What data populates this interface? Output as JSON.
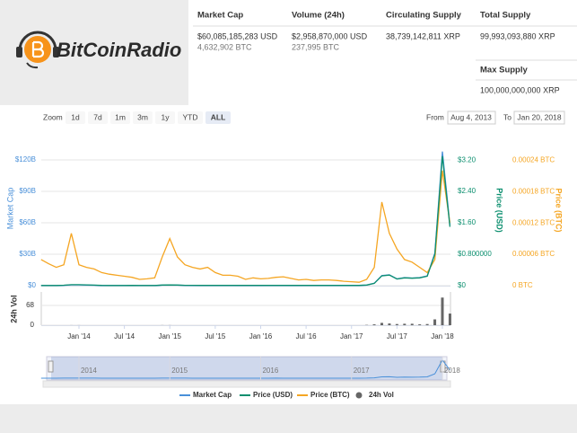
{
  "logo": {
    "text": "BitCoinRadio"
  },
  "stats": {
    "columns": [
      {
        "header": "Market Cap",
        "value": "$60,085,185,283 USD",
        "sub": "4,632,902 BTC"
      },
      {
        "header": "Volume (24h)",
        "value": "$2,958,870,000 USD",
        "sub": "237,995 BTC"
      },
      {
        "header": "Circulating Supply",
        "value": "38,739,142,811 XRP"
      },
      {
        "header": "Total Supply",
        "value": "99,993,093,880 XRP"
      }
    ],
    "max_supply": {
      "header": "Max Supply",
      "value": "100,000,000,000 XRP"
    }
  },
  "zoom": {
    "label": "Zoom",
    "buttons": [
      "1d",
      "7d",
      "1m",
      "3m",
      "1y",
      "YTD",
      "ALL"
    ],
    "active": "ALL"
  },
  "range": {
    "from_label": "From",
    "from": "Aug 4, 2013",
    "to_label": "To",
    "to": "Jan 20, 2018"
  },
  "chart_data": {
    "type": "line",
    "ylabel": "Market Cap",
    "y2label": "Price (USD)",
    "y3label": "Price (BTC)",
    "categories": [
      null,
      null,
      null,
      null,
      null,
      "Jan '14",
      null,
      null,
      null,
      null,
      null,
      "Jul '14",
      null,
      null,
      null,
      null,
      null,
      "Jan '15",
      null,
      null,
      null,
      null,
      null,
      "Jul '15",
      null,
      null,
      null,
      null,
      null,
      "Jan '16",
      null,
      null,
      null,
      null,
      null,
      "Jul '16",
      null,
      null,
      null,
      null,
      null,
      "Jan '17",
      null,
      null,
      null,
      null,
      null,
      "Jul '17",
      null,
      null,
      null,
      null,
      null,
      "Jan '18",
      null
    ],
    "series": [
      {
        "name": "Market Cap",
        "color": "#4a90d9",
        "axis": "y",
        "values": [
          0.16,
          0.16,
          0.16,
          0.38,
          0.8,
          0.8,
          0.64,
          0.45,
          0.19,
          0.16,
          0.16,
          0.16,
          0.19,
          0.16,
          0.16,
          0.16,
          0.51,
          0.58,
          0.48,
          0.32,
          0.29,
          0.26,
          0.26,
          0.26,
          0.26,
          0.22,
          0.19,
          0.19,
          0.19,
          0.21,
          0.25,
          0.32,
          0.25,
          0.21,
          0.21,
          0.22,
          0.22,
          0.25,
          0.25,
          0.25,
          0.24,
          0.23,
          0.25,
          0.55,
          2.3,
          9.6,
          10.4,
          6.5,
          7.7,
          7.3,
          7.7,
          9.3,
          31,
          128,
          58
        ]
      },
      {
        "name": "Price (USD)",
        "color": "#0c8f6f",
        "axis": "y2",
        "values": [
          0.005,
          0.005,
          0.005,
          0.012,
          0.025,
          0.025,
          0.02,
          0.014,
          0.006,
          0.005,
          0.005,
          0.005,
          0.006,
          0.005,
          0.005,
          0.005,
          0.016,
          0.018,
          0.015,
          0.01,
          0.009,
          0.008,
          0.008,
          0.008,
          0.008,
          0.007,
          0.006,
          0.006,
          0.006,
          0.006,
          0.007,
          0.009,
          0.007,
          0.006,
          0.006,
          0.006,
          0.006,
          0.007,
          0.007,
          0.007,
          0.0065,
          0.0064,
          0.007,
          0.015,
          0.06,
          0.25,
          0.27,
          0.17,
          0.2,
          0.19,
          0.2,
          0.24,
          0.8,
          3.3,
          1.5
        ]
      },
      {
        "name": "Price (BTC)",
        "color": "#f5a623",
        "axis": "y3",
        "values": [
          5e-05,
          4.2e-05,
          3.5e-05,
          4e-05,
          0.0001,
          4e-05,
          3.5e-05,
          3.2e-05,
          2.5e-05,
          2.2e-05,
          2e-05,
          1.8e-05,
          1.6e-05,
          1.2e-05,
          1.3e-05,
          1.5e-05,
          5.5e-05,
          9e-05,
          5.5e-05,
          4e-05,
          3.5e-05,
          3.2e-05,
          3.5e-05,
          2.5e-05,
          2e-05,
          2e-05,
          1.8e-05,
          1.2e-05,
          1.5e-05,
          1.3e-05,
          1.4e-05,
          1.6e-05,
          1.7e-05,
          1.4e-05,
          1.1e-05,
          1.2e-05,
          1e-05,
          1.1e-05,
          1.1e-05,
          1e-05,
          8.5e-06,
          7.5e-06,
          6.5e-06,
          1.2e-05,
          3.5e-05,
          0.00016,
          0.0001,
          7e-05,
          5e-05,
          4.5e-05,
          3.5e-05,
          2.5e-05,
          5e-05,
          0.00022,
          0.00012
        ]
      },
      {
        "name": "24h Vol",
        "color": "#666666",
        "axis": "vol",
        "type": "bar",
        "values": [
          0,
          0,
          0,
          0,
          0.2,
          0.2,
          0,
          0,
          0,
          0,
          0,
          0,
          0,
          0,
          0,
          0,
          0.3,
          0.3,
          0,
          0,
          0,
          0,
          0,
          0,
          0,
          0,
          0,
          0,
          0,
          0,
          0,
          0,
          0,
          0,
          0,
          0,
          0,
          0,
          0,
          0,
          0,
          0,
          0,
          1,
          3,
          8,
          6,
          4,
          5,
          5,
          3,
          4,
          20,
          95,
          40
        ]
      }
    ],
    "ylim": [
      0,
      139.7
    ],
    "yticks": [
      {
        "value": 0,
        "label": "$0"
      },
      {
        "value": 30,
        "label": "$30B"
      },
      {
        "value": 60,
        "label": "$60B"
      },
      {
        "value": 90,
        "label": "$90B"
      },
      {
        "value": 120,
        "label": "$120B"
      }
    ],
    "y2lim": [
      0,
      3.73
    ],
    "y2ticks": [
      {
        "value": 0,
        "label": "$0"
      },
      {
        "value": 0.8,
        "label": "$0.800000"
      },
      {
        "value": 1.6,
        "label": "$1.60"
      },
      {
        "value": 2.4,
        "label": "$2.40"
      },
      {
        "value": 3.2,
        "label": "$3.20"
      }
    ],
    "y3lim": [
      0,
      0.00028
    ],
    "y3ticks": [
      {
        "value": 0,
        "label": "0 BTC"
      },
      {
        "value": 6e-05,
        "label": "0.00006 BTC"
      },
      {
        "value": 0.00012,
        "label": "0.00012 BTC"
      },
      {
        "value": 0.00018,
        "label": "0.00018 BTC"
      },
      {
        "value": 0.00024,
        "label": "0.00024 BTC"
      }
    ],
    "vol_ylim": [
      0,
      105
    ],
    "vol_yticks": [
      0,
      68
    ],
    "grid": true,
    "navigator": {
      "labels": [
        "2014",
        "2015",
        "2016",
        "2017",
        "2018"
      ]
    }
  }
}
